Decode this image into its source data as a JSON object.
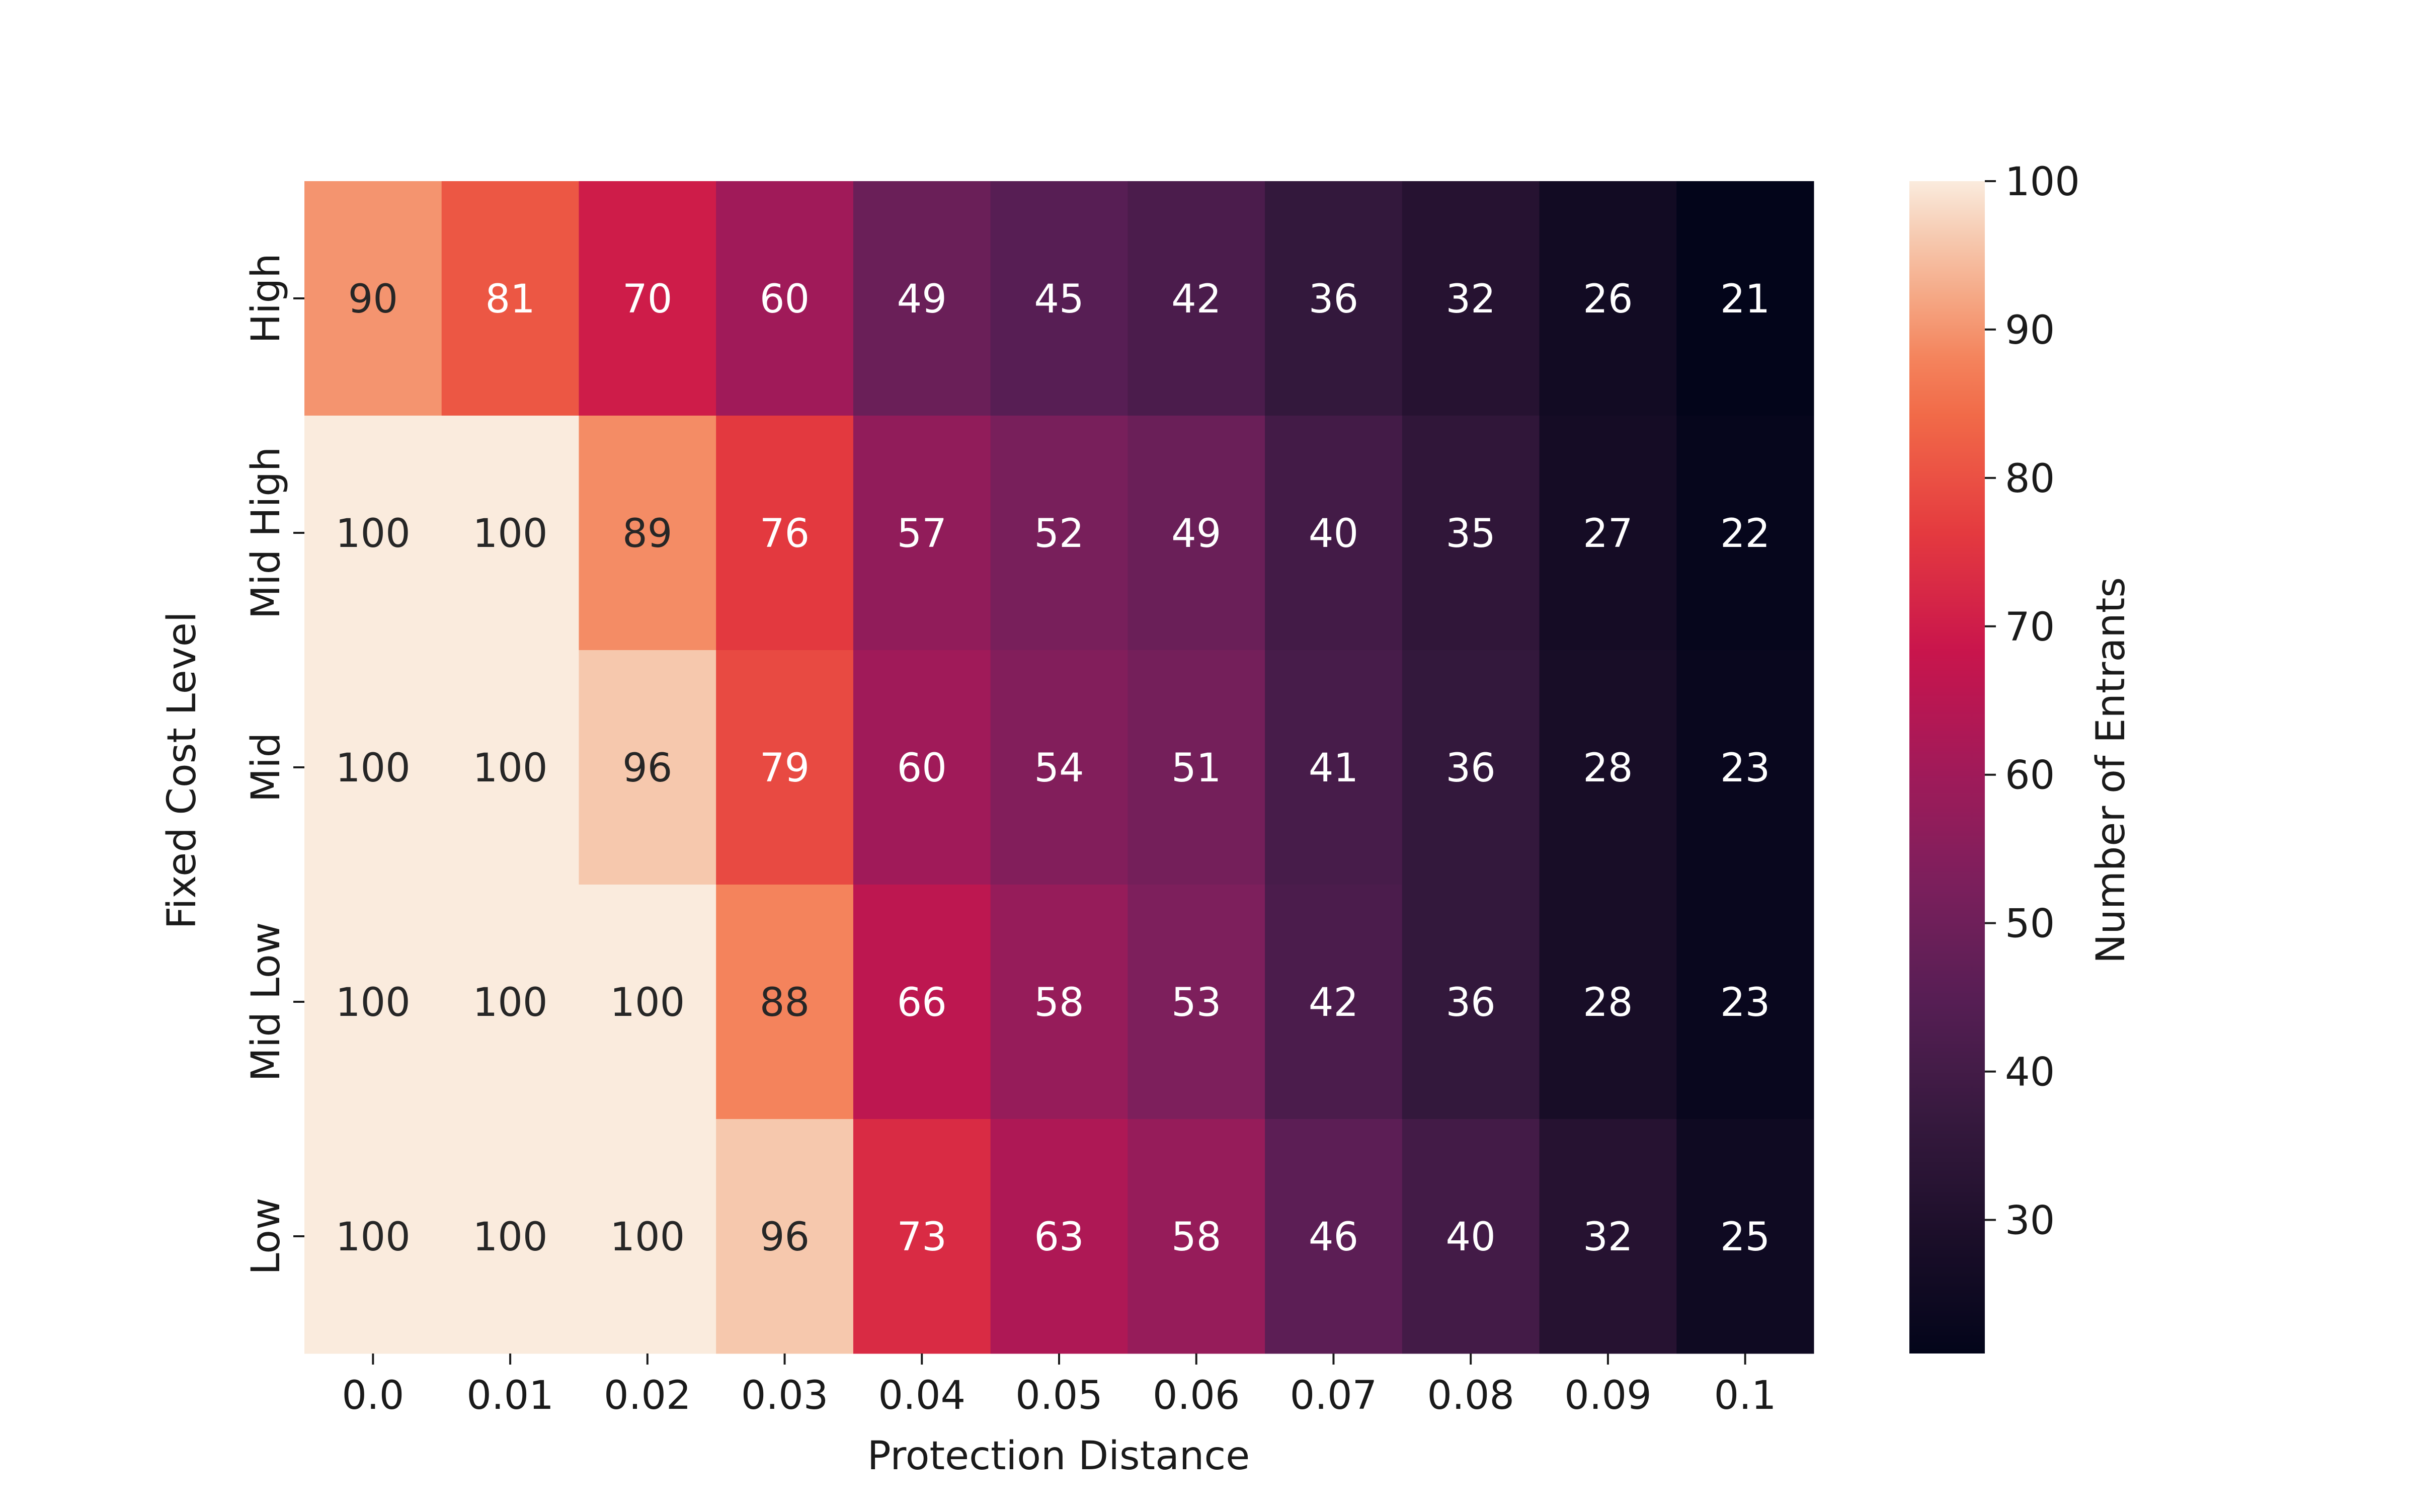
{
  "chart_data": {
    "type": "heatmap",
    "title": "",
    "xlabel": "Protection Distance",
    "ylabel": "Fixed Cost Level",
    "x_categories": [
      "0.0",
      "0.01",
      "0.02",
      "0.03",
      "0.04",
      "0.05",
      "0.06",
      "0.07",
      "0.08",
      "0.09",
      "0.1"
    ],
    "y_categories": [
      "High",
      "Mid High",
      "Mid",
      "Mid Low",
      "Low"
    ],
    "values": [
      [
        90,
        81,
        70,
        60,
        49,
        45,
        42,
        36,
        32,
        26,
        21
      ],
      [
        100,
        100,
        89,
        76,
        57,
        52,
        49,
        40,
        35,
        27,
        22
      ],
      [
        100,
        100,
        96,
        79,
        60,
        54,
        51,
        41,
        36,
        28,
        23
      ],
      [
        100,
        100,
        100,
        88,
        66,
        58,
        53,
        42,
        36,
        28,
        23
      ],
      [
        100,
        100,
        100,
        96,
        73,
        63,
        58,
        46,
        40,
        32,
        25
      ]
    ],
    "colorbar": {
      "label": "Number of Entrants",
      "range": [
        21,
        100
      ],
      "ticks": [
        "30",
        "40",
        "50",
        "60",
        "70",
        "80",
        "90",
        "100"
      ],
      "colormap": "rocket"
    },
    "annotations": "cell values shown in each cell"
  }
}
